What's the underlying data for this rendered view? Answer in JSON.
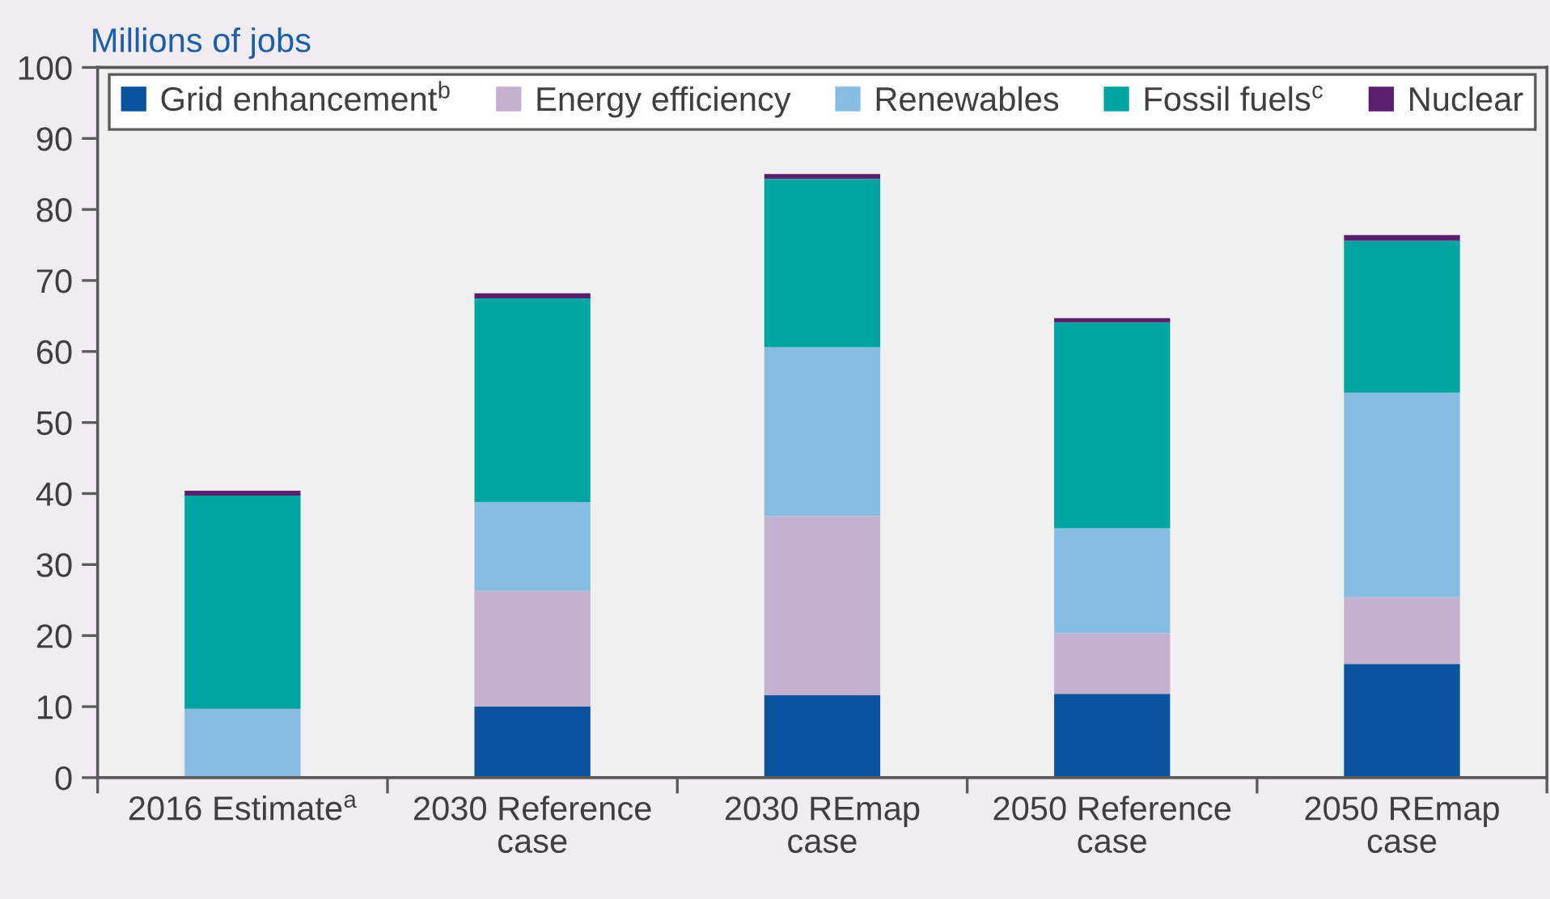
{
  "chart_data": {
    "type": "bar",
    "stacked": true,
    "ylabel": "Millions of jobs",
    "categories": [
      "2016 Estimate$^{a}$",
      "2030 Reference\ncase",
      "2030 REmap\ncase",
      "2050 Reference\ncase",
      "2050 REmap\ncase"
    ],
    "series": [
      {
        "name": "Grid enhancement$^{b}$",
        "color": "#0b539e",
        "values": [
          null,
          10.0,
          11.6,
          11.8,
          16.0
        ]
      },
      {
        "name": "Energy efficiency",
        "color": "#c4b0cf",
        "values": [
          null,
          16.3,
          25.2,
          8.5,
          9.4
        ]
      },
      {
        "name": "Renewables",
        "color": "#87bde2",
        "values": [
          9.7,
          12.5,
          23.8,
          14.8,
          28.8
        ]
      },
      {
        "name": "Fossil fuels$^{c}$",
        "color": "#00a4a0",
        "values": [
          30.0,
          28.7,
          23.7,
          29.0,
          21.4
        ]
      },
      {
        "name": "Nuclear",
        "color": "#5a1f6e",
        "values": [
          0.7,
          0.7,
          0.7,
          0.6,
          0.8
        ]
      }
    ],
    "ylim": [
      0,
      100
    ],
    "yticks": [
      0,
      10,
      20,
      30,
      40,
      50,
      60,
      70,
      80,
      90,
      100
    ],
    "legend": "top",
    "grid": false
  }
}
